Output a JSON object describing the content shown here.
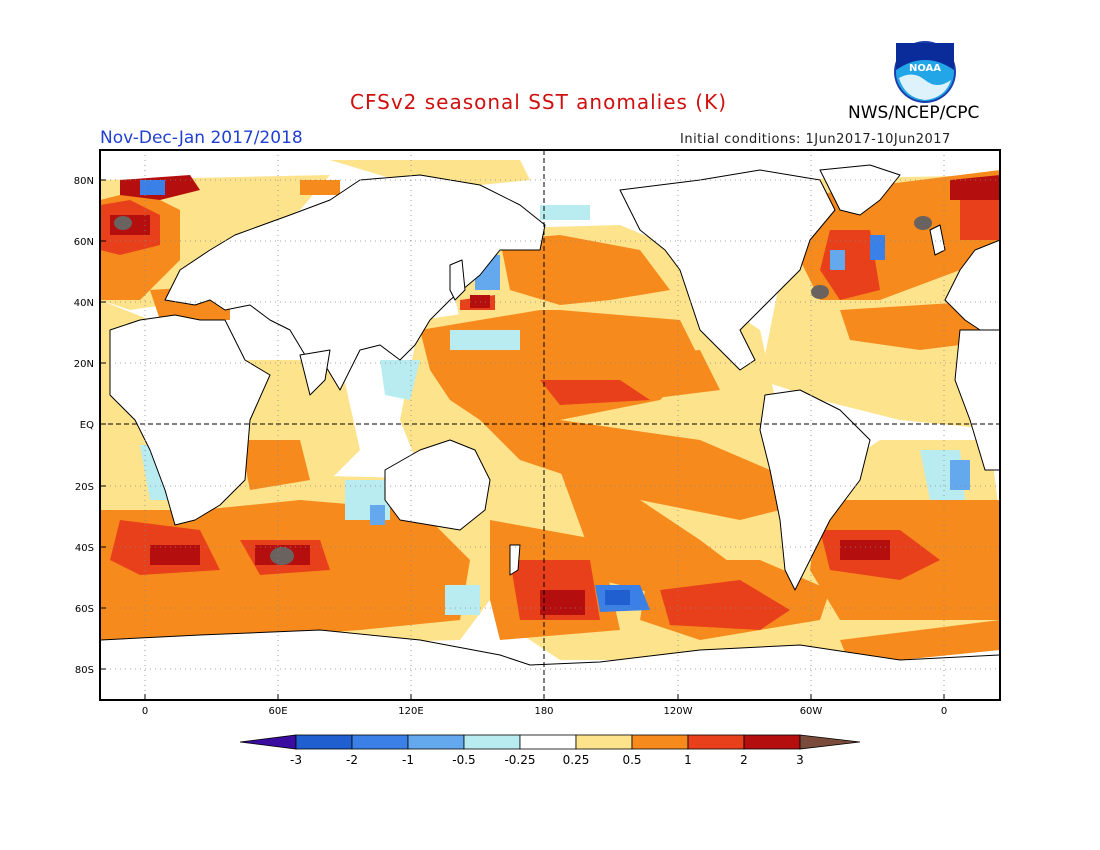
{
  "header": {
    "title": "CFSv2 seasonal SST anomalies (K)",
    "period": "Nov-Dec-Jan 2017/2018",
    "initial_conditions": "Initial conditions: 1Jun2017-10Jun2017",
    "agency": "NWS/NCEP/CPC",
    "logo_text": "NOAA"
  },
  "map": {
    "lat_labels": [
      "80N",
      "60N",
      "40N",
      "20N",
      "EQ",
      "20S",
      "40S",
      "60S",
      "80S"
    ],
    "lon_labels": [
      "0",
      "60E",
      "120E",
      "180",
      "120W",
      "60W",
      "0"
    ],
    "colors": {
      "land": "#ffffff",
      "coast": "#000000",
      "neutral": "#ffffff"
    }
  },
  "colorbar": {
    "labels": [
      "-3",
      "-2",
      "-1",
      "-0.5",
      "-0.25",
      "0.25",
      "0.5",
      "1",
      "2",
      "3"
    ],
    "colors": [
      "#3a0da0",
      "#1f5fd0",
      "#3a80e6",
      "#64a8ee",
      "#b8ecf0",
      "#ffffff",
      "#fde38c",
      "#f78a1c",
      "#e8401a",
      "#b50e0e",
      "#7a4a3a"
    ]
  }
}
